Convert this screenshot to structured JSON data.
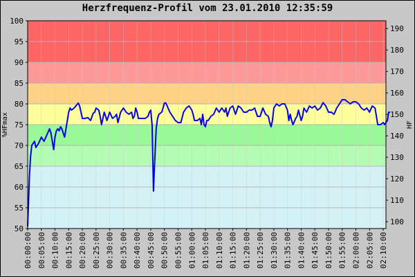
{
  "chart_data": {
    "type": "line",
    "title": "Herzfrequenz-Profil vom 23.01.2010 12:35:59",
    "ylabel": "%HFmax",
    "y2label": "HF",
    "ylim": [
      50,
      100
    ],
    "y2lim": [
      96.8,
      193.6
    ],
    "yticks": [
      "50",
      "55",
      "60",
      "65",
      "70",
      "75",
      "80",
      "85",
      "90",
      "95",
      "100"
    ],
    "y2ticks": [
      "100",
      "110",
      "120",
      "130",
      "140",
      "150",
      "160",
      "170",
      "180",
      "190"
    ],
    "xlim_minutes": [
      0,
      131
    ],
    "xticks": [
      "00:00:00",
      "00:05:00",
      "00:10:00",
      "00:15:00",
      "00:20:00",
      "00:25:00",
      "00:30:00",
      "00:35:00",
      "00:40:00",
      "00:45:00",
      "00:50:00",
      "00:55:00",
      "01:00:00",
      "01:05:00",
      "01:10:00",
      "01:15:00",
      "01:20:00",
      "01:25:00",
      "01:30:00",
      "01:35:00",
      "01:40:00",
      "01:45:00",
      "01:50:00",
      "01:55:00",
      "02:00:00",
      "02:05:00",
      "02:10:00"
    ],
    "zones": [
      {
        "from": 50,
        "to": 65,
        "color": "#d4f2f6"
      },
      {
        "from": 65,
        "to": 70,
        "color": "#b4fbb4"
      },
      {
        "from": 70,
        "to": 75,
        "color": "#99f999"
      },
      {
        "from": 75,
        "to": 80,
        "color": "#fefe9c"
      },
      {
        "from": 80,
        "to": 85,
        "color": "#fed286"
      },
      {
        "from": 85,
        "to": 90,
        "color": "#fe9999"
      },
      {
        "from": 90,
        "to": 100,
        "color": "#fe6666"
      }
    ],
    "grid": true,
    "series": [
      {
        "color": "#0000ee",
        "points": [
          [
            0,
            50.5
          ],
          [
            0.3,
            56
          ],
          [
            0.6,
            62
          ],
          [
            1,
            67
          ],
          [
            1.5,
            70
          ],
          [
            2,
            70.5
          ],
          [
            2.5,
            71
          ],
          [
            3,
            69.5
          ],
          [
            4,
            70.5
          ],
          [
            5,
            72
          ],
          [
            5.5,
            71.5
          ],
          [
            6,
            71
          ],
          [
            7,
            72.5
          ],
          [
            8,
            74
          ],
          [
            8.5,
            73
          ],
          [
            9,
            71
          ],
          [
            9.5,
            69
          ],
          [
            10,
            72
          ],
          [
            10.5,
            73.5
          ],
          [
            11,
            74
          ],
          [
            11.5,
            73.5
          ],
          [
            12,
            74.5
          ],
          [
            12.5,
            74
          ],
          [
            13,
            73
          ],
          [
            13.5,
            72
          ],
          [
            14,
            74
          ],
          [
            15,
            78
          ],
          [
            15.5,
            79
          ],
          [
            16,
            78.5
          ],
          [
            17,
            79
          ],
          [
            18,
            79.8
          ],
          [
            18.5,
            80.2
          ],
          [
            19,
            79.5
          ],
          [
            19.5,
            78
          ],
          [
            20,
            76.5
          ],
          [
            21,
            76.5
          ],
          [
            22,
            76.7
          ],
          [
            23,
            76
          ],
          [
            24,
            77.8
          ],
          [
            24.5,
            78
          ],
          [
            25,
            79
          ],
          [
            26,
            78.5
          ],
          [
            26.5,
            77
          ],
          [
            27,
            75
          ],
          [
            28,
            78
          ],
          [
            29,
            76
          ],
          [
            30,
            78
          ],
          [
            31,
            76.5
          ],
          [
            32,
            77
          ],
          [
            32.5,
            77.5
          ],
          [
            33,
            75.5
          ],
          [
            34,
            78
          ],
          [
            35,
            79
          ],
          [
            36,
            78
          ],
          [
            37,
            77.5
          ],
          [
            38,
            78
          ],
          [
            38.5,
            76.5
          ],
          [
            39,
            77
          ],
          [
            39.5,
            79
          ],
          [
            40,
            78
          ],
          [
            40.5,
            76.5
          ],
          [
            41,
            76.5
          ],
          [
            42,
            76.5
          ],
          [
            43,
            76.5
          ],
          [
            44,
            77
          ],
          [
            44.5,
            78
          ],
          [
            45,
            78.5
          ],
          [
            45.5,
            75
          ],
          [
            46,
            59
          ],
          [
            46.3,
            64
          ],
          [
            46.7,
            70
          ],
          [
            47,
            74
          ],
          [
            47.5,
            76.5
          ],
          [
            48,
            77.5
          ],
          [
            49,
            78
          ],
          [
            49.5,
            79
          ],
          [
            50,
            80.2
          ],
          [
            50.5,
            80.2
          ],
          [
            51,
            79.5
          ],
          [
            52,
            78
          ],
          [
            53,
            77
          ],
          [
            54,
            76
          ],
          [
            55,
            75.5
          ],
          [
            56,
            75.5
          ],
          [
            57,
            78
          ],
          [
            58,
            79
          ],
          [
            59,
            79.5
          ],
          [
            60,
            78.5
          ],
          [
            60.5,
            77.5
          ],
          [
            61,
            76
          ],
          [
            62,
            76
          ],
          [
            63,
            76.5
          ],
          [
            63.5,
            75
          ],
          [
            64,
            77.5
          ],
          [
            64.5,
            75
          ],
          [
            65,
            74.5
          ],
          [
            65.5,
            76
          ],
          [
            66,
            76
          ],
          [
            67,
            77
          ],
          [
            68,
            77.5
          ],
          [
            69,
            79
          ],
          [
            70,
            78
          ],
          [
            71,
            79
          ],
          [
            72,
            78
          ],
          [
            72.5,
            79
          ],
          [
            73,
            77
          ],
          [
            74,
            79
          ],
          [
            75,
            79.5
          ],
          [
            76,
            77.5
          ],
          [
            77,
            79.5
          ],
          [
            78,
            79
          ],
          [
            79,
            78
          ],
          [
            80,
            78
          ],
          [
            81,
            78.5
          ],
          [
            82,
            78.5
          ],
          [
            83,
            79
          ],
          [
            84,
            77
          ],
          [
            85,
            77
          ],
          [
            86,
            79
          ],
          [
            87,
            77.5
          ],
          [
            88,
            77
          ],
          [
            88.5,
            75.5
          ],
          [
            89,
            74.5
          ],
          [
            89.5,
            76
          ],
          [
            90,
            79
          ],
          [
            91,
            80
          ],
          [
            92,
            79.5
          ],
          [
            93,
            80
          ],
          [
            94,
            80
          ],
          [
            95,
            78.5
          ],
          [
            95.5,
            76
          ],
          [
            96,
            77.5
          ],
          [
            96.5,
            76
          ],
          [
            97,
            75
          ],
          [
            98,
            76.5
          ],
          [
            98.5,
            77
          ],
          [
            99,
            78.5
          ],
          [
            100,
            76
          ],
          [
            100.5,
            77
          ],
          [
            101,
            79
          ],
          [
            102,
            78
          ],
          [
            103,
            79.5
          ],
          [
            104,
            79
          ],
          [
            105,
            79.5
          ],
          [
            106,
            78.5
          ],
          [
            107,
            79
          ],
          [
            108,
            80.3
          ],
          [
            109,
            79.5
          ],
          [
            110,
            78
          ],
          [
            111,
            78
          ],
          [
            112,
            77.5
          ],
          [
            113,
            79
          ],
          [
            114,
            80
          ],
          [
            115,
            81
          ],
          [
            116,
            81
          ],
          [
            117,
            80.5
          ],
          [
            118,
            80
          ],
          [
            119,
            80.5
          ],
          [
            120,
            80.5
          ],
          [
            121,
            80
          ],
          [
            122,
            79
          ],
          [
            123,
            78.5
          ],
          [
            124,
            79
          ],
          [
            125,
            78
          ],
          [
            126,
            79.5
          ],
          [
            127,
            79
          ],
          [
            127.5,
            77
          ],
          [
            128,
            75
          ],
          [
            129,
            75
          ],
          [
            130,
            75.5
          ],
          [
            130.5,
            75
          ],
          [
            131,
            75.5
          ],
          [
            131.5,
            76
          ],
          [
            132,
            78
          ],
          [
            132.5,
            78
          ]
        ]
      }
    ]
  }
}
